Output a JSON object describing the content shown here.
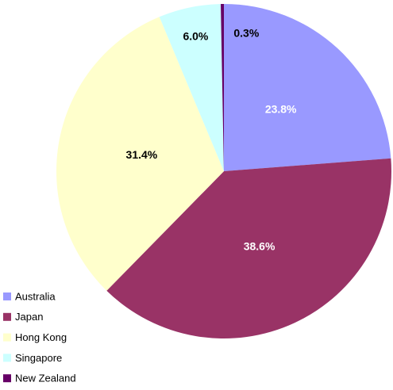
{
  "chart_data": {
    "type": "pie",
    "categories": [
      "Australia",
      "Japan",
      "Hong Kong",
      "Singapore",
      "New Zealand"
    ],
    "values": [
      23.8,
      38.6,
      31.4,
      6.0,
      0.3
    ],
    "value_labels": [
      "23.8%",
      "38.6%",
      "31.4%",
      "6.0%",
      "0.3%"
    ],
    "colors": [
      "#9999ff",
      "#993366",
      "#ffffcc",
      "#ccffff",
      "#660066"
    ],
    "legend": "bottom-left"
  }
}
